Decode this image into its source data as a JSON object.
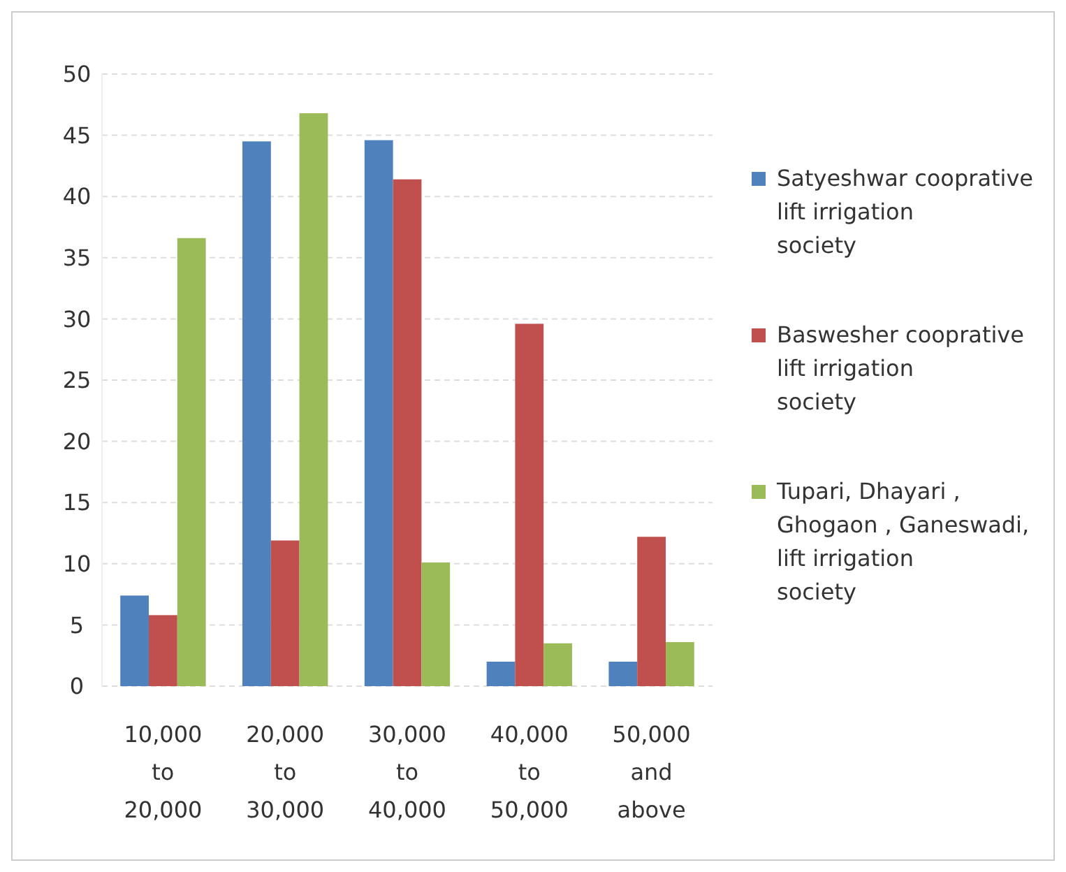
{
  "chart_data": {
    "type": "bar",
    "categories": [
      "10,000 to 20,000",
      "20,000 to 30,000",
      "30,000 to 40,000",
      "40,000 to 50,000",
      "50,000 and above"
    ],
    "series": [
      {
        "name": "Satyeshwar cooprative lift irrigation society",
        "color": "#4f81bd",
        "values": [
          7.4,
          44.5,
          44.6,
          2,
          2
        ]
      },
      {
        "name": "Baswesher cooprative lift irrigation society",
        "color": "#c0504d",
        "values": [
          5.8,
          11.9,
          41.4,
          29.6,
          12.2
        ]
      },
      {
        "name": "Tupari, Dhayari , Ghogaon , Ganeswadi, lift irrigation society",
        "color": "#9bbb59",
        "values": [
          36.6,
          46.8,
          10.1,
          3.5,
          3.6
        ]
      }
    ],
    "ylim": [
      0,
      50
    ],
    "yticks": [
      0,
      5,
      10,
      15,
      20,
      25,
      30,
      35,
      40,
      45,
      50
    ],
    "grid": "y",
    "legend": "right"
  }
}
